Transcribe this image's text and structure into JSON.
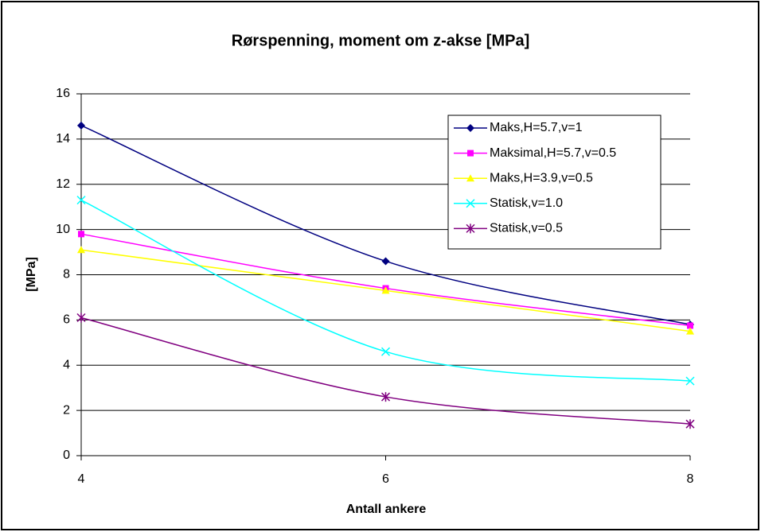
{
  "chart_data": {
    "type": "line",
    "title": "Rørspenning, moment om z-akse [MPa]",
    "xlabel": "Antall ankere",
    "ylabel": "[MPa]",
    "x": [
      4,
      6,
      8
    ],
    "series": [
      {
        "name": "Maks,H=5.7,v=1",
        "color": "#000080",
        "marker": "diamond",
        "values": [
          14.6,
          8.6,
          5.8
        ]
      },
      {
        "name": "Maksimal,H=5.7,v=0.5",
        "color": "#FF00FF",
        "marker": "square",
        "values": [
          9.8,
          7.4,
          5.75
        ]
      },
      {
        "name": "Maks,H=3.9,v=0.5",
        "color": "#FFFF00",
        "marker": "triangle",
        "values": [
          9.1,
          7.3,
          5.5
        ]
      },
      {
        "name": "Statisk,v=1.0",
        "color": "#00FFFF",
        "marker": "x",
        "values": [
          11.3,
          4.6,
          3.3
        ]
      },
      {
        "name": "Statisk,v=0.5",
        "color": "#800080",
        "marker": "star",
        "values": [
          6.1,
          2.6,
          1.4
        ]
      }
    ],
    "xlim": [
      4,
      8
    ],
    "xticks": [
      4,
      6,
      8
    ],
    "ylim": [
      0,
      16
    ],
    "yticks": [
      0,
      2,
      4,
      6,
      8,
      10,
      12,
      14,
      16
    ],
    "grid": true,
    "smooth": true,
    "legend": "upper right"
  }
}
